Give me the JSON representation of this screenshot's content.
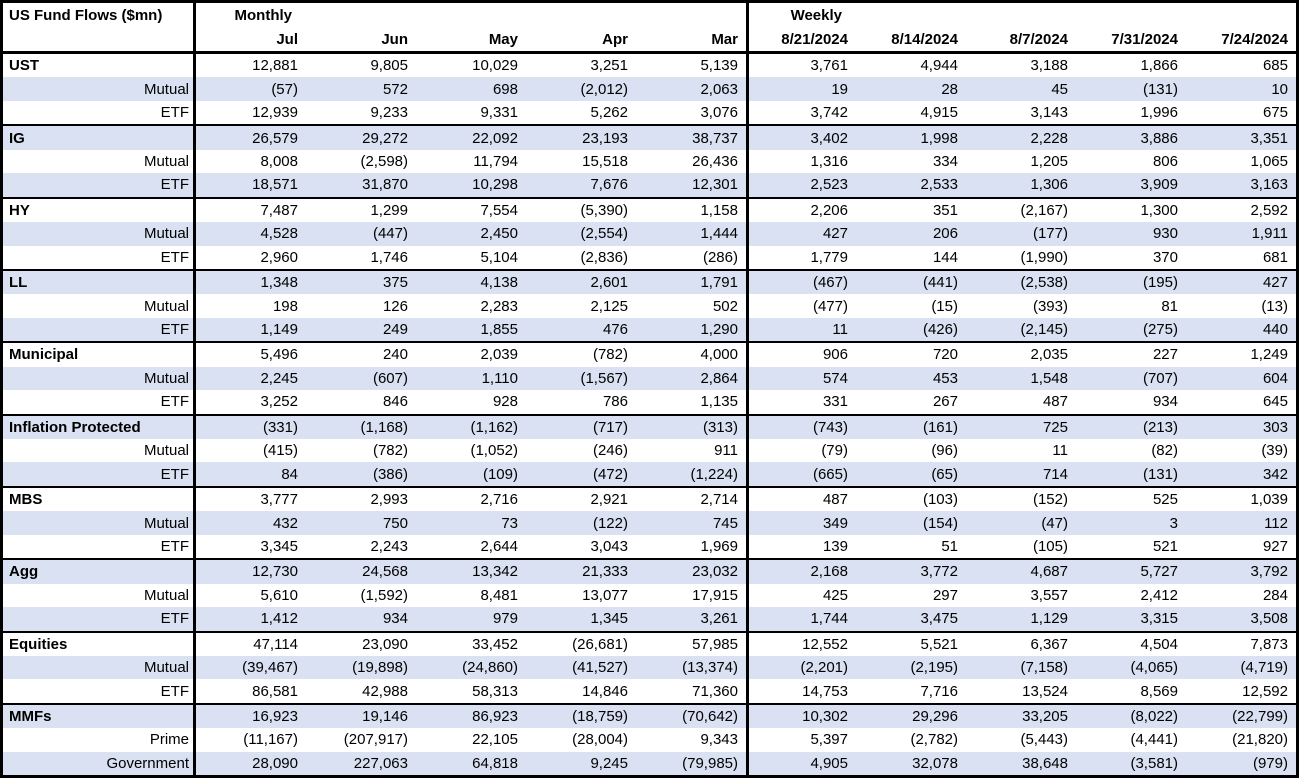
{
  "title": "US Fund Flows ($mn)",
  "groups": {
    "monthly": "Monthly",
    "weekly": "Weekly"
  },
  "columns": {
    "monthly": [
      "Jul",
      "Jun",
      "May",
      "Apr",
      "Mar"
    ],
    "weekly": [
      "8/21/2024",
      "8/14/2024",
      "8/7/2024",
      "7/31/2024",
      "7/24/2024"
    ]
  },
  "colors": {
    "stripe": "#d9e1f2",
    "border": "#000000",
    "background": "#ffffff",
    "text": "#000000"
  },
  "rows": [
    {
      "label": "UST",
      "category": true,
      "values": [
        "12,881",
        "9,805",
        "10,029",
        "3,251",
        "5,139",
        "3,761",
        "4,944",
        "3,188",
        "1,866",
        "685"
      ]
    },
    {
      "label": "Mutual",
      "category": false,
      "values": [
        "(57)",
        "572",
        "698",
        "(2,012)",
        "2,063",
        "19",
        "28",
        "45",
        "(131)",
        "10"
      ]
    },
    {
      "label": "ETF",
      "category": false,
      "values": [
        "12,939",
        "9,233",
        "9,331",
        "5,262",
        "3,076",
        "3,742",
        "4,915",
        "3,143",
        "1,996",
        "675"
      ]
    },
    {
      "label": "IG",
      "category": true,
      "values": [
        "26,579",
        "29,272",
        "22,092",
        "23,193",
        "38,737",
        "3,402",
        "1,998",
        "2,228",
        "3,886",
        "3,351"
      ]
    },
    {
      "label": "Mutual",
      "category": false,
      "values": [
        "8,008",
        "(2,598)",
        "11,794",
        "15,518",
        "26,436",
        "1,316",
        "334",
        "1,205",
        "806",
        "1,065"
      ]
    },
    {
      "label": "ETF",
      "category": false,
      "values": [
        "18,571",
        "31,870",
        "10,298",
        "7,676",
        "12,301",
        "2,523",
        "2,533",
        "1,306",
        "3,909",
        "3,163"
      ]
    },
    {
      "label": "HY",
      "category": true,
      "values": [
        "7,487",
        "1,299",
        "7,554",
        "(5,390)",
        "1,158",
        "2,206",
        "351",
        "(2,167)",
        "1,300",
        "2,592"
      ]
    },
    {
      "label": "Mutual",
      "category": false,
      "values": [
        "4,528",
        "(447)",
        "2,450",
        "(2,554)",
        "1,444",
        "427",
        "206",
        "(177)",
        "930",
        "1,911"
      ]
    },
    {
      "label": "ETF",
      "category": false,
      "values": [
        "2,960",
        "1,746",
        "5,104",
        "(2,836)",
        "(286)",
        "1,779",
        "144",
        "(1,990)",
        "370",
        "681"
      ]
    },
    {
      "label": "LL",
      "category": true,
      "values": [
        "1,348",
        "375",
        "4,138",
        "2,601",
        "1,791",
        "(467)",
        "(441)",
        "(2,538)",
        "(195)",
        "427"
      ]
    },
    {
      "label": "Mutual",
      "category": false,
      "values": [
        "198",
        "126",
        "2,283",
        "2,125",
        "502",
        "(477)",
        "(15)",
        "(393)",
        "81",
        "(13)"
      ]
    },
    {
      "label": "ETF",
      "category": false,
      "values": [
        "1,149",
        "249",
        "1,855",
        "476",
        "1,290",
        "11",
        "(426)",
        "(2,145)",
        "(275)",
        "440"
      ]
    },
    {
      "label": "Municipal",
      "category": true,
      "values": [
        "5,496",
        "240",
        "2,039",
        "(782)",
        "4,000",
        "906",
        "720",
        "2,035",
        "227",
        "1,249"
      ]
    },
    {
      "label": "Mutual",
      "category": false,
      "values": [
        "2,245",
        "(607)",
        "1,110",
        "(1,567)",
        "2,864",
        "574",
        "453",
        "1,548",
        "(707)",
        "604"
      ]
    },
    {
      "label": "ETF",
      "category": false,
      "values": [
        "3,252",
        "846",
        "928",
        "786",
        "1,135",
        "331",
        "267",
        "487",
        "934",
        "645"
      ]
    },
    {
      "label": "Inflation Protected",
      "category": true,
      "values": [
        "(331)",
        "(1,168)",
        "(1,162)",
        "(717)",
        "(313)",
        "(743)",
        "(161)",
        "725",
        "(213)",
        "303"
      ]
    },
    {
      "label": "Mutual",
      "category": false,
      "values": [
        "(415)",
        "(782)",
        "(1,052)",
        "(246)",
        "911",
        "(79)",
        "(96)",
        "11",
        "(82)",
        "(39)"
      ]
    },
    {
      "label": "ETF",
      "category": false,
      "values": [
        "84",
        "(386)",
        "(109)",
        "(472)",
        "(1,224)",
        "(665)",
        "(65)",
        "714",
        "(131)",
        "342"
      ]
    },
    {
      "label": "MBS",
      "category": true,
      "values": [
        "3,777",
        "2,993",
        "2,716",
        "2,921",
        "2,714",
        "487",
        "(103)",
        "(152)",
        "525",
        "1,039"
      ]
    },
    {
      "label": "Mutual",
      "category": false,
      "values": [
        "432",
        "750",
        "73",
        "(122)",
        "745",
        "349",
        "(154)",
        "(47)",
        "3",
        "112"
      ]
    },
    {
      "label": "ETF",
      "category": false,
      "values": [
        "3,345",
        "2,243",
        "2,644",
        "3,043",
        "1,969",
        "139",
        "51",
        "(105)",
        "521",
        "927"
      ]
    },
    {
      "label": "Agg",
      "category": true,
      "values": [
        "12,730",
        "24,568",
        "13,342",
        "21,333",
        "23,032",
        "2,168",
        "3,772",
        "4,687",
        "5,727",
        "3,792"
      ]
    },
    {
      "label": "Mutual",
      "category": false,
      "values": [
        "5,610",
        "(1,592)",
        "8,481",
        "13,077",
        "17,915",
        "425",
        "297",
        "3,557",
        "2,412",
        "284"
      ]
    },
    {
      "label": "ETF",
      "category": false,
      "values": [
        "1,412",
        "934",
        "979",
        "1,345",
        "3,261",
        "1,744",
        "3,475",
        "1,129",
        "3,315",
        "3,508"
      ]
    },
    {
      "label": "Equities",
      "category": true,
      "values": [
        "47,114",
        "23,090",
        "33,452",
        "(26,681)",
        "57,985",
        "12,552",
        "5,521",
        "6,367",
        "4,504",
        "7,873"
      ]
    },
    {
      "label": "Mutual",
      "category": false,
      "values": [
        "(39,467)",
        "(19,898)",
        "(24,860)",
        "(41,527)",
        "(13,374)",
        "(2,201)",
        "(2,195)",
        "(7,158)",
        "(4,065)",
        "(4,719)"
      ]
    },
    {
      "label": "ETF",
      "category": false,
      "values": [
        "86,581",
        "42,988",
        "58,313",
        "14,846",
        "71,360",
        "14,753",
        "7,716",
        "13,524",
        "8,569",
        "12,592"
      ]
    },
    {
      "label": "MMFs",
      "category": true,
      "values": [
        "16,923",
        "19,146",
        "86,923",
        "(18,759)",
        "(70,642)",
        "10,302",
        "29,296",
        "33,205",
        "(8,022)",
        "(22,799)"
      ]
    },
    {
      "label": "Prime",
      "category": false,
      "values": [
        "(11,167)",
        "(207,917)",
        "22,105",
        "(28,004)",
        "9,343",
        "5,397",
        "(2,782)",
        "(5,443)",
        "(4,441)",
        "(21,820)"
      ]
    },
    {
      "label": "Government",
      "category": false,
      "values": [
        "28,090",
        "227,063",
        "64,818",
        "9,245",
        "(79,985)",
        "4,905",
        "32,078",
        "38,648",
        "(3,581)",
        "(979)"
      ]
    }
  ]
}
